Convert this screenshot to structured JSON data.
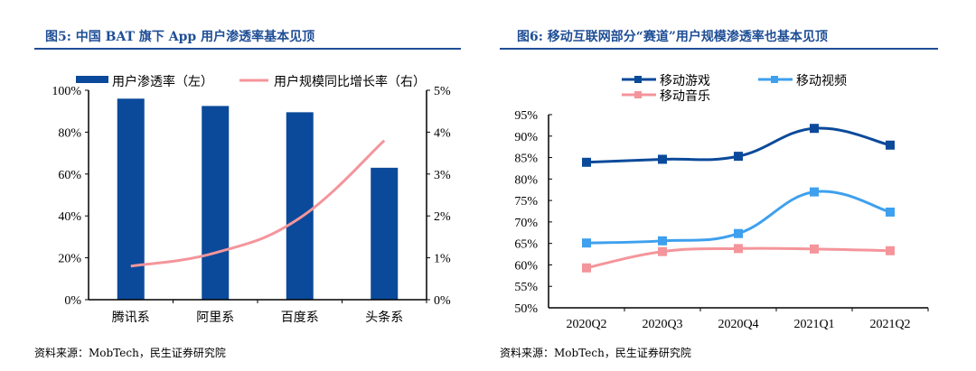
{
  "chart_data": [
    {
      "type": "bar+line",
      "title": "图5: 中国 BAT 旗下 App 用户渗透率基本见顶",
      "categories": [
        "腾讯系",
        "阿里系",
        "百度系",
        "头条系"
      ],
      "series": [
        {
          "name": "用户渗透率（左）",
          "type": "bar",
          "axis": "left",
          "values": [
            96,
            92.5,
            89.5,
            63
          ],
          "color": "#0b4a9a"
        },
        {
          "name": "用户规模同比增长率（右）",
          "type": "line",
          "axis": "right",
          "values": [
            0.8,
            1.12,
            1.95,
            3.8
          ],
          "color": "#f4959b"
        }
      ],
      "ylim_left": [
        0,
        100
      ],
      "yticks_left": [
        "0%",
        "20%",
        "40%",
        "60%",
        "80%",
        "100%"
      ],
      "ylim_right": [
        0,
        5
      ],
      "yticks_right": [
        "0%",
        "1%",
        "2%",
        "3%",
        "4%",
        "5%"
      ],
      "legend": "top",
      "grid": false,
      "source": "资料来源：MobTech，民生证券研究院"
    },
    {
      "type": "line",
      "title": "图6: 移动互联网部分“赛道”用户规模渗透率也基本见顶",
      "categories": [
        "2020Q2",
        "2020Q3",
        "2020Q4",
        "2021Q1",
        "2021Q2"
      ],
      "series": [
        {
          "name": "移动游戏",
          "values": [
            83.9,
            84.6,
            85.3,
            91.8,
            87.9
          ],
          "color": "#0b4a9a"
        },
        {
          "name": "移动视频",
          "values": [
            65.1,
            65.6,
            67.3,
            77.0,
            72.3
          ],
          "color": "#3ea0ee"
        },
        {
          "name": "移动音乐",
          "values": [
            59.3,
            63.1,
            63.8,
            63.7,
            63.3
          ],
          "color": "#f4959b"
        }
      ],
      "ylim": [
        50,
        95
      ],
      "yticks": [
        "50%",
        "55%",
        "60%",
        "65%",
        "70%",
        "75%",
        "80%",
        "85%",
        "90%",
        "95%"
      ],
      "legend": "top",
      "grid": false,
      "source": "资料来源：MobTech，民生证券研究院"
    }
  ]
}
